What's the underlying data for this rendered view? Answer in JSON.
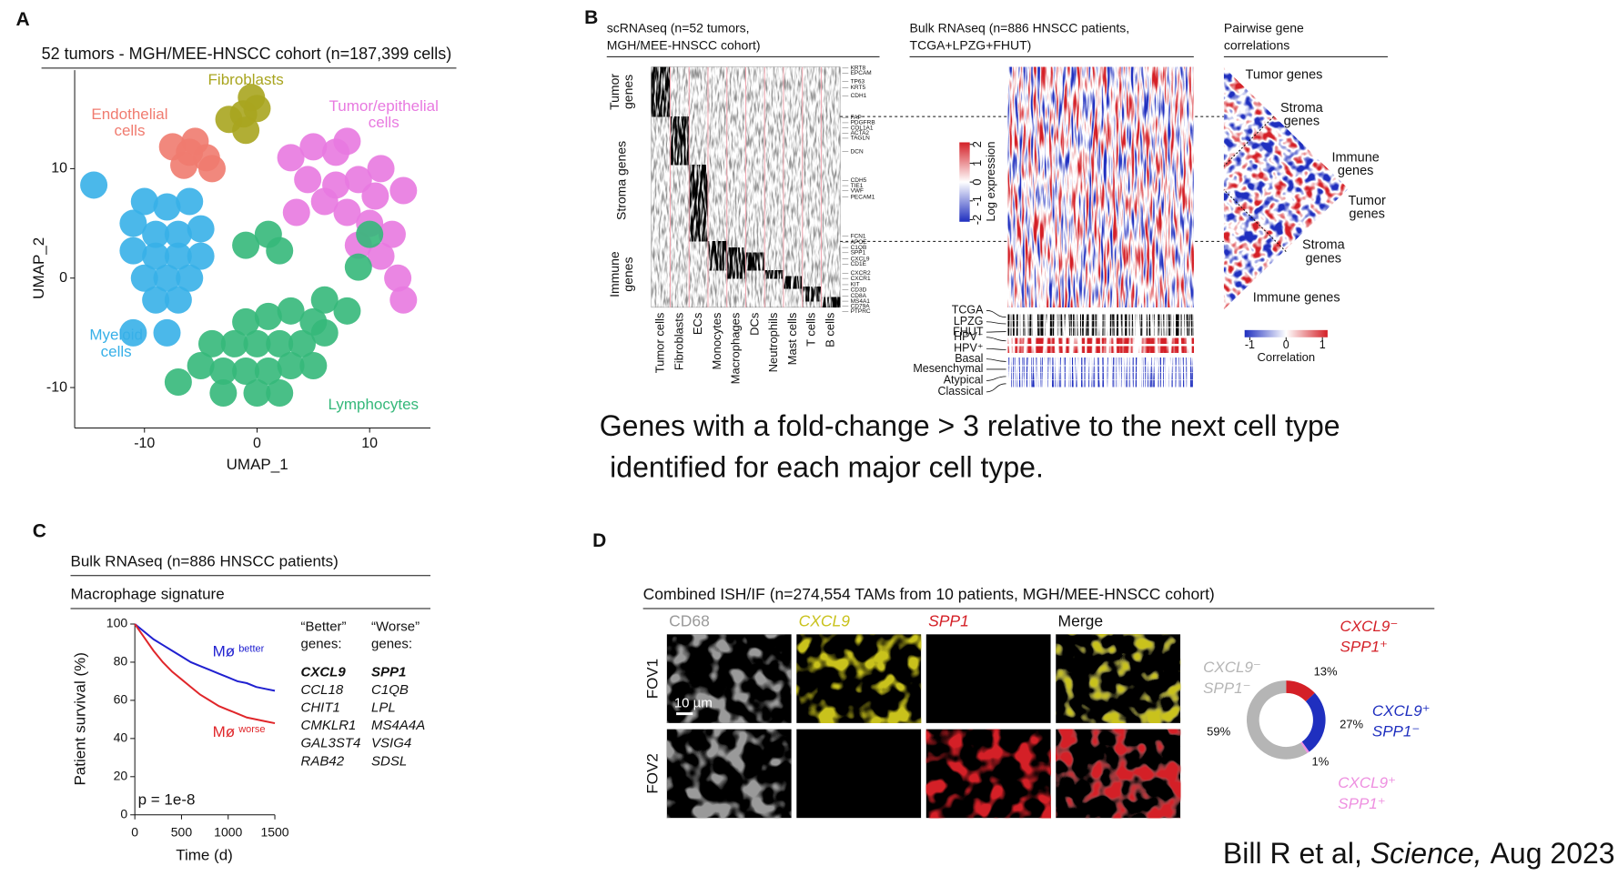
{
  "figure": {
    "panel_letters": [
      "A",
      "B",
      "C",
      "D"
    ],
    "caption": [
      "Genes with a fold-change > 3 relative to the next cell type",
      "identified for each major cell type."
    ],
    "citation": {
      "authors": "Bill R et al,",
      "journal": "Science,",
      "date": "Aug 2023"
    }
  },
  "chart_data": [
    {
      "type": "scatter",
      "title": "52 tumors - MGH/MEE-HNSCC cohort (n=187,399 cells)",
      "x_label": "UMAP_1",
      "y_label": "UMAP_2",
      "xlim": [
        -16.2,
        15.4
      ],
      "ylim": [
        -13.7,
        19
      ],
      "xticks": [
        -10,
        0,
        10
      ],
      "yticks": [
        -10,
        0,
        10
      ],
      "series": [
        {
          "name": "Fibroblasts",
          "color": "#a9a51f",
          "x": [
            -2.5,
            -1.2,
            0,
            -1,
            -0.5
          ],
          "y": [
            14.5,
            15,
            15.5,
            13.5,
            16.5
          ]
        },
        {
          "name": "Endothelial cells",
          "color": "#f07b6f",
          "x": [
            -7.5,
            -6,
            -4.5,
            -6.5,
            -4,
            -5.5
          ],
          "y": [
            12,
            11.5,
            11,
            10.3,
            10,
            12.5
          ]
        },
        {
          "name": "Tumor/epithelial cells",
          "color": "#e879e0",
          "x": [
            3,
            5,
            7,
            4.5,
            7,
            9,
            10.5,
            8,
            10,
            12,
            9,
            11,
            12.5,
            13,
            6,
            11,
            13,
            3.5,
            8
          ],
          "y": [
            11,
            12,
            11.5,
            9,
            8.5,
            9,
            7.5,
            6,
            5,
            4,
            3,
            2,
            0,
            -2,
            7,
            10,
            8,
            6,
            12.5
          ]
        },
        {
          "name": "Myeloid cells",
          "color": "#37b0e8",
          "x": [
            -10,
            -8,
            -6,
            -11,
            -9,
            -7,
            -5,
            -11,
            -9,
            -7,
            -5,
            -10,
            -8,
            -6,
            -9,
            -7,
            -11,
            -8,
            -14.5
          ],
          "y": [
            7,
            6.5,
            7,
            5,
            4,
            4,
            4.5,
            2.5,
            2,
            2,
            2,
            0,
            0,
            0,
            -2,
            -2,
            -5,
            -5,
            8.5
          ]
        },
        {
          "name": "Lymphocytes",
          "color": "#35b87a",
          "x": [
            -1,
            1,
            2,
            -1,
            1,
            3,
            5,
            -4,
            -2,
            0,
            2,
            4,
            6,
            -5,
            -3,
            -1,
            1,
            3,
            5,
            -7,
            -3,
            0,
            2,
            6,
            8,
            9,
            10
          ],
          "y": [
            3,
            4,
            2.5,
            -4,
            -3.5,
            -3,
            -4,
            -6,
            -6,
            -6,
            -6,
            -6,
            -5,
            -8,
            -8.5,
            -8.5,
            -8.5,
            -8,
            -8,
            -9.5,
            -10.5,
            -10.5,
            -10.5,
            -2,
            -3,
            1,
            4
          ]
        }
      ]
    },
    {
      "type": "line",
      "title": "Bulk RNAseq (n=886 HNSCC patients)",
      "subtitle": "Macrophage signature",
      "x_label": "Time (d)",
      "y_label": "Patient survival (%)",
      "annotation": "p = 1e-8",
      "x": [
        0,
        100,
        200,
        300,
        400,
        500,
        600,
        700,
        800,
        900,
        1000,
        1100,
        1200,
        1300,
        1400,
        1500
      ],
      "xlim": [
        0,
        1500
      ],
      "ylim": [
        0,
        100
      ],
      "xticks": [
        0,
        500,
        1000,
        1500
      ],
      "yticks": [
        0,
        20,
        40,
        60,
        80,
        100
      ],
      "series": [
        {
          "name": "Mø",
          "qualifier": "better",
          "color": "#2020d0",
          "values": [
            100,
            96,
            92,
            89,
            86,
            83,
            80,
            78,
            76,
            74,
            72,
            70,
            69,
            67,
            66,
            65
          ]
        },
        {
          "name": "Mø",
          "qualifier": "worse",
          "color": "#e0262a",
          "values": [
            100,
            93,
            86,
            80,
            75,
            71,
            67,
            63,
            60,
            57,
            55,
            53,
            51,
            50,
            49,
            48
          ]
        }
      ],
      "gene_lists": [
        {
          "heading": [
            "“Better”",
            "genes:"
          ],
          "genes": [
            "CXCL9",
            "CCL18",
            "CHIT1",
            "CMKLR1",
            "GAL3ST4",
            "RAB42"
          ]
        },
        {
          "heading": [
            "“Worse”",
            "genes:"
          ],
          "genes": [
            "SPP1",
            "C1QB",
            "LPL",
            "MS4A4A",
            "VSIG4",
            "SDSL"
          ]
        }
      ]
    },
    {
      "type": "pie",
      "donut": true,
      "title": "Combined ISH/IF (n=274,554 TAMs from 10 patients, MGH/MEE-HNSCC cohort)",
      "categories": [
        [
          "CXCL9⁻",
          "SPP1⁺"
        ],
        [
          "CXCL9⁺",
          "SPP1⁻"
        ],
        [
          "CXCL9⁺",
          "SPP1⁺"
        ],
        [
          "CXCL9⁻",
          "SPP1⁻"
        ]
      ],
      "values": [
        13,
        27,
        1,
        59
      ],
      "value_labels": [
        "13%",
        "27%",
        "1%",
        "59%"
      ],
      "colors": [
        "#d42027",
        "#1f2fbf",
        "#ee8fe0",
        "#b5b5b5"
      ]
    }
  ],
  "panel_b": {
    "sc_title": [
      "scRNAseq (n=52 tumors,",
      "MGH/MEE-HNSCC cohort)"
    ],
    "gene_groups": [
      [
        "Tumor",
        "genes"
      ],
      [
        "Stroma genes"
      ],
      [
        "Immune",
        "genes"
      ]
    ],
    "cell_types": [
      "Tumor cells",
      "Fibroblasts",
      "ECs",
      "Monocytes",
      "Macrophages",
      "DCs",
      "Neutrophils",
      "Mast cells",
      "T cells",
      "B cells"
    ],
    "genes": [
      "KRT8",
      "EPCAM",
      "TP63",
      "KRT5",
      "CDH1",
      "FAP",
      "PDGFRB",
      "COL1A1",
      "ACTA2",
      "TAGLN",
      "DCN",
      "CDH5",
      "TIE1",
      "VWF",
      "PECAM1",
      "FCN1",
      "APOE",
      "C1QB",
      "SPP1",
      "CXCL9",
      "CD1E",
      "CXCR2",
      "CXCR1",
      "KIT",
      "CD3D",
      "CD8A",
      "MS4A1",
      "CD79A",
      "PTPRC"
    ],
    "bulk_title": [
      "Bulk RNAseq (n=886 HNSCC patients,",
      "TCGA+LPZG+FHUT)"
    ],
    "expression_scale": {
      "label": "Log expression",
      "ticks": [
        -2,
        -1,
        0,
        1,
        2
      ],
      "colors": [
        "#1f2fbf",
        "#ffffff",
        "#d42027"
      ]
    },
    "tracks": [
      "TCGA",
      "LPZG",
      "FHUT",
      "HPV⁻",
      "HPV⁺",
      "Basal",
      "Mesenchymal",
      "Atypical",
      "Classical"
    ],
    "corr_title": [
      "Pairwise gene",
      "correlations"
    ],
    "corr_labels": [
      [
        "Tumor genes"
      ],
      [
        "Stroma",
        "genes"
      ],
      [
        "Immune",
        "genes"
      ],
      [
        "Tumor",
        "genes"
      ],
      [
        "Stroma",
        "genes"
      ],
      [
        "Immune genes"
      ]
    ],
    "correlation_scale": {
      "label": "Correlation",
      "ticks": [
        -1,
        0,
        1
      ]
    }
  },
  "panel_d": {
    "channels": [
      {
        "label": "CD68",
        "color": "#9a9a9a"
      },
      {
        "label": "CXCL9",
        "color": "#c9c21c"
      },
      {
        "label": "SPP1",
        "color": "#d42027"
      },
      {
        "label": "Merge",
        "color": "#111111"
      }
    ],
    "fields": [
      "FOV1",
      "FOV2"
    ],
    "scale_bar": "10 µm"
  }
}
